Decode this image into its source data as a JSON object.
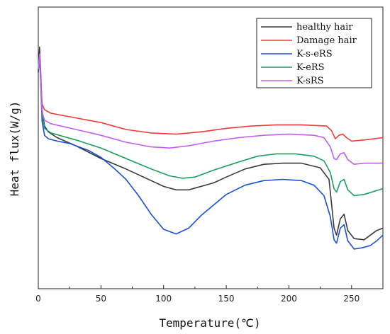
{
  "chart_data": {
    "type": "line",
    "title": "",
    "xlabel": "Temperature(℃)",
    "ylabel": "Heat flux(W/g)",
    "xlim": [
      0,
      275
    ],
    "xticks": [
      0,
      50,
      100,
      150,
      200,
      250
    ],
    "xtick_labels": [
      "0",
      "50",
      "100",
      "150",
      "200",
      "250"
    ],
    "yticks_labels_shown": false,
    "y_units": "relative",
    "ylim": [
      0,
      1
    ],
    "grid": false,
    "legend_position": "top-right",
    "series": [
      {
        "name": "healthy hair",
        "color": "#3a3a3a",
        "points": [
          [
            0,
            0.87
          ],
          [
            1,
            0.98
          ],
          [
            2,
            0.86
          ],
          [
            3,
            0.71
          ],
          [
            5,
            0.64
          ],
          [
            8,
            0.615
          ],
          [
            15,
            0.59
          ],
          [
            30,
            0.555
          ],
          [
            50,
            0.5
          ],
          [
            70,
            0.455
          ],
          [
            90,
            0.405
          ],
          [
            100,
            0.38
          ],
          [
            110,
            0.365
          ],
          [
            120,
            0.365
          ],
          [
            140,
            0.395
          ],
          [
            150,
            0.42
          ],
          [
            165,
            0.455
          ],
          [
            180,
            0.475
          ],
          [
            195,
            0.48
          ],
          [
            210,
            0.48
          ],
          [
            225,
            0.46
          ],
          [
            232,
            0.41
          ],
          [
            236,
            0.2
          ],
          [
            238,
            0.17
          ],
          [
            241,
            0.24
          ],
          [
            244,
            0.26
          ],
          [
            247,
            0.19
          ],
          [
            252,
            0.155
          ],
          [
            260,
            0.15
          ],
          [
            270,
            0.19
          ],
          [
            275,
            0.2
          ]
        ]
      },
      {
        "name": "Damage hair",
        "color": "#f23a3a",
        "points": [
          [
            0,
            0.88
          ],
          [
            1,
            0.95
          ],
          [
            2,
            0.84
          ],
          [
            3,
            0.735
          ],
          [
            5,
            0.71
          ],
          [
            10,
            0.695
          ],
          [
            30,
            0.675
          ],
          [
            50,
            0.655
          ],
          [
            70,
            0.625
          ],
          [
            90,
            0.61
          ],
          [
            110,
            0.605
          ],
          [
            130,
            0.615
          ],
          [
            150,
            0.63
          ],
          [
            170,
            0.64
          ],
          [
            190,
            0.645
          ],
          [
            210,
            0.645
          ],
          [
            230,
            0.64
          ],
          [
            234,
            0.62
          ],
          [
            237,
            0.585
          ],
          [
            240,
            0.6
          ],
          [
            243,
            0.605
          ],
          [
            246,
            0.59
          ],
          [
            250,
            0.575
          ],
          [
            260,
            0.58
          ],
          [
            275,
            0.59
          ]
        ]
      },
      {
        "name": "K-s-eRS",
        "color": "#1a4fd6",
        "points": [
          [
            0,
            0.88
          ],
          [
            1,
            0.95
          ],
          [
            2,
            0.82
          ],
          [
            3,
            0.66
          ],
          [
            5,
            0.6
          ],
          [
            8,
            0.585
          ],
          [
            15,
            0.575
          ],
          [
            25,
            0.565
          ],
          [
            40,
            0.535
          ],
          [
            50,
            0.505
          ],
          [
            60,
            0.46
          ],
          [
            70,
            0.41
          ],
          [
            80,
            0.34
          ],
          [
            90,
            0.26
          ],
          [
            100,
            0.195
          ],
          [
            110,
            0.175
          ],
          [
            120,
            0.2
          ],
          [
            130,
            0.255
          ],
          [
            140,
            0.3
          ],
          [
            150,
            0.345
          ],
          [
            165,
            0.385
          ],
          [
            180,
            0.405
          ],
          [
            195,
            0.41
          ],
          [
            210,
            0.405
          ],
          [
            220,
            0.385
          ],
          [
            228,
            0.34
          ],
          [
            233,
            0.25
          ],
          [
            236,
            0.15
          ],
          [
            238,
            0.135
          ],
          [
            241,
            0.2
          ],
          [
            244,
            0.215
          ],
          [
            247,
            0.145
          ],
          [
            252,
            0.11
          ],
          [
            258,
            0.115
          ],
          [
            265,
            0.125
          ],
          [
            270,
            0.145
          ],
          [
            275,
            0.17
          ]
        ]
      },
      {
        "name": "K-eRS",
        "color": "#1a9e5c",
        "points": [
          [
            0,
            0.89
          ],
          [
            1,
            0.93
          ],
          [
            2,
            0.82
          ],
          [
            3,
            0.69
          ],
          [
            5,
            0.63
          ],
          [
            10,
            0.61
          ],
          [
            30,
            0.58
          ],
          [
            50,
            0.545
          ],
          [
            70,
            0.5
          ],
          [
            90,
            0.455
          ],
          [
            105,
            0.425
          ],
          [
            115,
            0.415
          ],
          [
            125,
            0.42
          ],
          [
            140,
            0.45
          ],
          [
            160,
            0.485
          ],
          [
            175,
            0.51
          ],
          [
            190,
            0.52
          ],
          [
            205,
            0.52
          ],
          [
            220,
            0.51
          ],
          [
            228,
            0.49
          ],
          [
            233,
            0.44
          ],
          [
            236,
            0.37
          ],
          [
            238,
            0.355
          ],
          [
            241,
            0.4
          ],
          [
            244,
            0.41
          ],
          [
            247,
            0.365
          ],
          [
            252,
            0.34
          ],
          [
            260,
            0.345
          ],
          [
            275,
            0.37
          ]
        ]
      },
      {
        "name": "K-sRS",
        "color": "#c25ef2",
        "points": [
          [
            0,
            0.885
          ],
          [
            1,
            0.95
          ],
          [
            2,
            0.83
          ],
          [
            3,
            0.7
          ],
          [
            5,
            0.665
          ],
          [
            10,
            0.65
          ],
          [
            30,
            0.625
          ],
          [
            50,
            0.6
          ],
          [
            70,
            0.57
          ],
          [
            90,
            0.55
          ],
          [
            105,
            0.545
          ],
          [
            120,
            0.555
          ],
          [
            140,
            0.575
          ],
          [
            160,
            0.59
          ],
          [
            180,
            0.6
          ],
          [
            200,
            0.605
          ],
          [
            220,
            0.6
          ],
          [
            228,
            0.59
          ],
          [
            233,
            0.55
          ],
          [
            236,
            0.5
          ],
          [
            238,
            0.495
          ],
          [
            241,
            0.52
          ],
          [
            244,
            0.525
          ],
          [
            247,
            0.495
          ],
          [
            252,
            0.475
          ],
          [
            260,
            0.48
          ],
          [
            275,
            0.48
          ]
        ]
      }
    ]
  }
}
